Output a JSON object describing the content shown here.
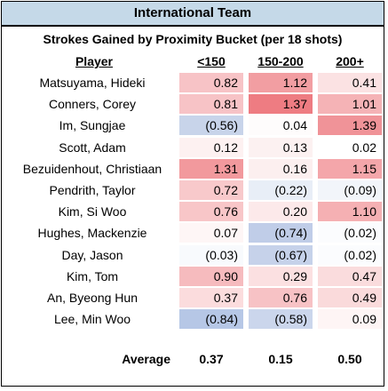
{
  "title": "International Team",
  "subtitle": "Strokes Gained by Proximity Bucket (per 18 shots)",
  "columns": [
    "Player",
    "<150",
    "150-200",
    "200+"
  ],
  "rows": [
    {
      "player": "Matsuyama, Hideki",
      "values": [
        "0.82",
        "1.12",
        "0.41"
      ],
      "colors": [
        "#f7c3c6",
        "#f29ea2",
        "#fbe2e3"
      ]
    },
    {
      "player": "Conners, Corey",
      "values": [
        "0.81",
        "1.37",
        "1.01"
      ],
      "colors": [
        "#f7c3c6",
        "#ee7c82",
        "#f5b3b6"
      ]
    },
    {
      "player": "Im, Sungjae",
      "values": [
        "(0.56)",
        "0.04",
        "1.39"
      ],
      "colors": [
        "#c8d4ea",
        "#fefcfc",
        "#f09398"
      ]
    },
    {
      "player": "Scott, Adam",
      "values": [
        "0.12",
        "0.13",
        "0.02"
      ],
      "colors": [
        "#fdf1f1",
        "#fcf1f1",
        "#ffffff"
      ]
    },
    {
      "player": "Bezuidenhout, Christiaan",
      "values": [
        "1.31",
        "0.16",
        "1.15"
      ],
      "colors": [
        "#f2999d",
        "#fcefef",
        "#f4a6aa"
      ]
    },
    {
      "player": "Pendrith, Taylor",
      "values": [
        "0.72",
        "(0.22)",
        "(0.09)"
      ],
      "colors": [
        "#f8c9cb",
        "#e8eef7",
        "#f2f5fa"
      ]
    },
    {
      "player": "Kim, Si Woo",
      "values": [
        "0.76",
        "0.20",
        "1.10"
      ],
      "colors": [
        "#f8c6c8",
        "#fce9ea",
        "#f5b0b3"
      ]
    },
    {
      "player": "Hughes, Mackenzie",
      "values": [
        "0.07",
        "(0.74)",
        "(0.02)"
      ],
      "colors": [
        "#fef6f6",
        "#c0cde8",
        "#fbfcfe"
      ]
    },
    {
      "player": "Day, Jason",
      "values": [
        "(0.03)",
        "(0.67)",
        "(0.02)"
      ],
      "colors": [
        "#f8fafd",
        "#c6d2ea",
        "#fbfcfe"
      ]
    },
    {
      "player": "Kim, Tom",
      "values": [
        "0.90",
        "0.29",
        "0.47"
      ],
      "colors": [
        "#f6bbbe",
        "#fbe0e1",
        "#fadcdd"
      ]
    },
    {
      "player": "An, Byeong Hun",
      "values": [
        "0.37",
        "0.76",
        "0.49"
      ],
      "colors": [
        "#fbdcdd",
        "#f7c2c5",
        "#fadadb"
      ]
    },
    {
      "player": "Lee, Min Woo",
      "values": [
        "(0.84)",
        "(0.58)",
        "0.09"
      ],
      "colors": [
        "#b6c7e6",
        "#cbd6ec",
        "#fef5f5"
      ]
    }
  ],
  "average": {
    "label": "Average",
    "values": [
      "0.37",
      "0.15",
      "0.50"
    ]
  }
}
